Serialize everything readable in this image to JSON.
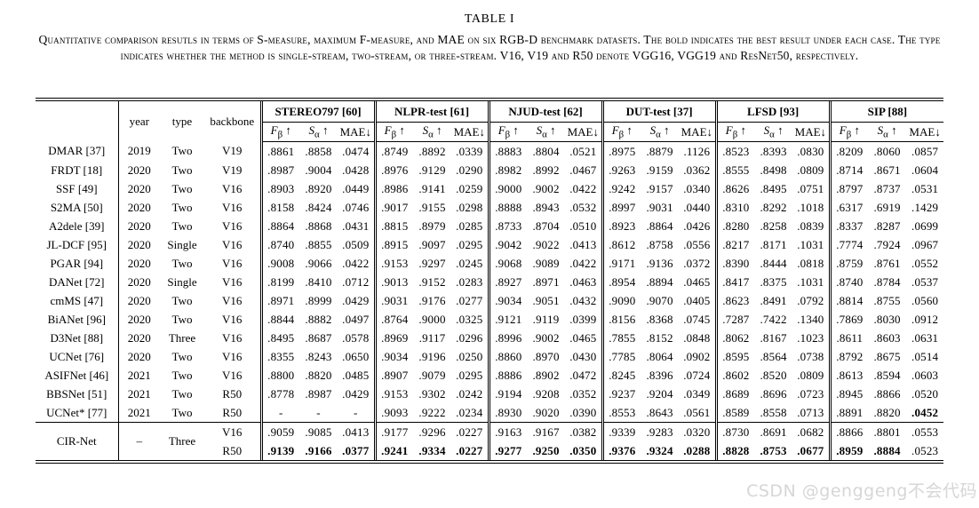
{
  "page": {
    "title": "TABLE I",
    "caption": "Quantitative comparison resutls in terms of S-measure, maximum F-measure, and MAE on six RGB-D benchmark datasets. The bold indicates the best result under each case. The type indicates whether the method is single-stream, two-stream, or three-stream. V16, V19 and R50 denote VGG16, VGG19 and ResNet50, respectively."
  },
  "watermark": {
    "text": "CSDN @genggeng不会代码"
  },
  "table": {
    "corner_label": "",
    "meta_headers": [
      "year",
      "type",
      "backbone"
    ],
    "datasets": [
      "STEREO797 [60]",
      "NLPR-test [61]",
      "NJUD-test [62]",
      "DUT-test [37]",
      "LFSD [93]",
      "SIP [88]"
    ],
    "metrics": [
      {
        "name": "F",
        "sub": "β",
        "arrow": "↑"
      },
      {
        "name": "S",
        "sub": "α",
        "arrow": "↑"
      },
      {
        "name": "MAE",
        "sub": "",
        "arrow": "↓"
      }
    ],
    "rows": [
      {
        "method": "DMAR [37]",
        "year": "2019",
        "type": "Two",
        "backbone": "V19",
        "bold": [],
        "values": [
          ".8861",
          ".8858",
          ".0474",
          ".8749",
          ".8892",
          ".0339",
          ".8883",
          ".8804",
          ".0521",
          ".8975",
          ".8879",
          ".1126",
          ".8523",
          ".8393",
          ".0830",
          ".8209",
          ".8060",
          ".0857"
        ]
      },
      {
        "method": "FRDT [18]",
        "year": "2020",
        "type": "Two",
        "backbone": "V19",
        "bold": [],
        "values": [
          ".8987",
          ".9004",
          ".0428",
          ".8976",
          ".9129",
          ".0290",
          ".8982",
          ".8992",
          ".0467",
          ".9263",
          ".9159",
          ".0362",
          ".8555",
          ".8498",
          ".0809",
          ".8714",
          ".8671",
          ".0604"
        ]
      },
      {
        "method": "SSF [49]",
        "year": "2020",
        "type": "Two",
        "backbone": "V16",
        "bold": [],
        "values": [
          ".8903",
          ".8920",
          ".0449",
          ".8986",
          ".9141",
          ".0259",
          ".9000",
          ".9002",
          ".0422",
          ".9242",
          ".9157",
          ".0340",
          ".8626",
          ".8495",
          ".0751",
          ".8797",
          ".8737",
          ".0531"
        ]
      },
      {
        "method": "S2MA [50]",
        "year": "2020",
        "type": "Two",
        "backbone": "V16",
        "bold": [],
        "values": [
          ".8158",
          ".8424",
          ".0746",
          ".9017",
          ".9155",
          ".0298",
          ".8888",
          ".8943",
          ".0532",
          ".8997",
          ".9031",
          ".0440",
          ".8310",
          ".8292",
          ".1018",
          ".6317",
          ".6919",
          ".1429"
        ]
      },
      {
        "method": "A2dele [39]",
        "year": "2020",
        "type": "Two",
        "backbone": "V16",
        "bold": [],
        "values": [
          ".8864",
          ".8868",
          ".0431",
          ".8815",
          ".8979",
          ".0285",
          ".8733",
          ".8704",
          ".0510",
          ".8923",
          ".8864",
          ".0426",
          ".8280",
          ".8258",
          ".0839",
          ".8337",
          ".8287",
          ".0699"
        ]
      },
      {
        "method": "JL-DCF [95]",
        "year": "2020",
        "type": "Single",
        "backbone": "V16",
        "bold": [],
        "values": [
          ".8740",
          ".8855",
          ".0509",
          ".8915",
          ".9097",
          ".0295",
          ".9042",
          ".9022",
          ".0413",
          ".8612",
          ".8758",
          ".0556",
          ".8217",
          ".8171",
          ".1031",
          ".7774",
          ".7924",
          ".0967"
        ]
      },
      {
        "method": "PGAR [94]",
        "year": "2020",
        "type": "Two",
        "backbone": "V16",
        "bold": [],
        "values": [
          ".9008",
          ".9066",
          ".0422",
          ".9153",
          ".9297",
          ".0245",
          ".9068",
          ".9089",
          ".0422",
          ".9171",
          ".9136",
          ".0372",
          ".8390",
          ".8444",
          ".0818",
          ".8759",
          ".8761",
          ".0552"
        ]
      },
      {
        "method": "DANet [72]",
        "year": "2020",
        "type": "Single",
        "backbone": "V16",
        "bold": [],
        "values": [
          ".8199",
          ".8410",
          ".0712",
          ".9013",
          ".9152",
          ".0283",
          ".8927",
          ".8971",
          ".0463",
          ".8954",
          ".8894",
          ".0465",
          ".8417",
          ".8375",
          ".1031",
          ".8740",
          ".8784",
          ".0537"
        ]
      },
      {
        "method": "cmMS [47]",
        "year": "2020",
        "type": "Two",
        "backbone": "V16",
        "bold": [],
        "values": [
          ".8971",
          ".8999",
          ".0429",
          ".9031",
          ".9176",
          ".0277",
          ".9034",
          ".9051",
          ".0432",
          ".9090",
          ".9070",
          ".0405",
          ".8623",
          ".8491",
          ".0792",
          ".8814",
          ".8755",
          ".0560"
        ]
      },
      {
        "method": "BiANet [96]",
        "year": "2020",
        "type": "Two",
        "backbone": "V16",
        "bold": [],
        "values": [
          ".8844",
          ".8882",
          ".0497",
          ".8764",
          ".9000",
          ".0325",
          ".9121",
          ".9119",
          ".0399",
          ".8156",
          ".8368",
          ".0745",
          ".7287",
          ".7422",
          ".1340",
          ".7869",
          ".8030",
          ".0912"
        ]
      },
      {
        "method": "D3Net [88]",
        "year": "2020",
        "type": "Three",
        "backbone": "V16",
        "bold": [],
        "values": [
          ".8495",
          ".8687",
          ".0578",
          ".8969",
          ".9117",
          ".0296",
          ".8996",
          ".9002",
          ".0465",
          ".7855",
          ".8152",
          ".0848",
          ".8062",
          ".8167",
          ".1023",
          ".8611",
          ".8603",
          ".0631"
        ]
      },
      {
        "method": "UCNet [76]",
        "year": "2020",
        "type": "Two",
        "backbone": "V16",
        "bold": [],
        "values": [
          ".8355",
          ".8243",
          ".0650",
          ".9034",
          ".9196",
          ".0250",
          ".8860",
          ".8970",
          ".0430",
          ".7785",
          ".8064",
          ".0902",
          ".8595",
          ".8564",
          ".0738",
          ".8792",
          ".8675",
          ".0514"
        ]
      },
      {
        "method": "ASIFNet [46]",
        "year": "2021",
        "type": "Two",
        "backbone": "V16",
        "bold": [],
        "values": [
          ".8800",
          ".8820",
          ".0485",
          ".8907",
          ".9079",
          ".0295",
          ".8886",
          ".8902",
          ".0472",
          ".8245",
          ".8396",
          ".0724",
          ".8602",
          ".8520",
          ".0809",
          ".8613",
          ".8594",
          ".0603"
        ]
      },
      {
        "method": "BBSNet [51]",
        "year": "2021",
        "type": "Two",
        "backbone": "R50",
        "bold": [],
        "values": [
          ".8778",
          ".8987",
          ".0429",
          ".9153",
          ".9302",
          ".0242",
          ".9194",
          ".9208",
          ".0352",
          ".9237",
          ".9204",
          ".0349",
          ".8689",
          ".8696",
          ".0723",
          ".8945",
          ".8866",
          ".0520"
        ]
      },
      {
        "method": "UCNet* [77]",
        "year": "2021",
        "type": "Two",
        "backbone": "R50",
        "bold": [
          17
        ],
        "values": [
          "-",
          "-",
          "-",
          ".9093",
          ".9222",
          ".0234",
          ".8930",
          ".9020",
          ".0390",
          ".8553",
          ".8643",
          ".0561",
          ".8589",
          ".8558",
          ".0713",
          ".8891",
          ".8820",
          ".0452"
        ]
      }
    ],
    "footer": {
      "method": "CIR-Net",
      "year": "–",
      "type": "Three",
      "subrows": [
        {
          "backbone": "V16",
          "bold": [],
          "values": [
            ".9059",
            ".9085",
            ".0413",
            ".9177",
            ".9296",
            ".0227",
            ".9163",
            ".9167",
            ".0382",
            ".9339",
            ".9283",
            ".0320",
            ".8730",
            ".8691",
            ".0682",
            ".8866",
            ".8801",
            ".0553"
          ]
        },
        {
          "backbone": "R50",
          "bold": [
            0,
            1,
            2,
            3,
            4,
            5,
            6,
            7,
            8,
            9,
            10,
            11,
            12,
            13,
            14,
            15,
            16
          ],
          "values": [
            ".9139",
            ".9166",
            ".0377",
            ".9241",
            ".9334",
            ".0227",
            ".9277",
            ".9250",
            ".0350",
            ".9376",
            ".9324",
            ".0288",
            ".8828",
            ".8753",
            ".0677",
            ".8959",
            ".8884",
            ".0523"
          ]
        }
      ]
    }
  }
}
